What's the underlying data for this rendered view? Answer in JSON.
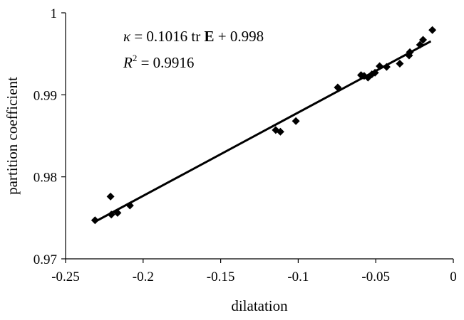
{
  "chart_data": {
    "type": "scatter",
    "xlabel": "dilatation",
    "ylabel": "partition coefficient",
    "xlim": [
      -0.25,
      0
    ],
    "ylim": [
      0.97,
      1
    ],
    "xticks": [
      -0.25,
      -0.2,
      -0.15,
      -0.1,
      -0.05,
      0
    ],
    "xtick_labels": [
      "-0.25",
      "-0.2",
      "-0.15",
      "-0.1",
      "-0.05",
      "0"
    ],
    "yticks": [
      0.97,
      0.98,
      0.99,
      1
    ],
    "ytick_labels": [
      "0.97",
      "0.98",
      "0.99",
      "1"
    ],
    "grid": false,
    "legend": "none",
    "marker": "diamond",
    "series": [
      {
        "points": [
          [
            -0.231,
            0.9747
          ],
          [
            -0.221,
            0.9776
          ],
          [
            -0.2205,
            0.9754
          ],
          [
            -0.2165,
            0.9756
          ],
          [
            -0.2085,
            0.9765
          ],
          [
            -0.1145,
            0.9857
          ],
          [
            -0.1115,
            0.9855
          ],
          [
            -0.1015,
            0.9868
          ],
          [
            -0.0745,
            0.9909
          ],
          [
            -0.0595,
            0.9924
          ],
          [
            -0.0575,
            0.9923
          ],
          [
            -0.055,
            0.9921
          ],
          [
            -0.0525,
            0.9925
          ],
          [
            -0.0505,
            0.9927
          ],
          [
            -0.0475,
            0.9935
          ],
          [
            -0.043,
            0.9934
          ],
          [
            -0.0345,
            0.9938
          ],
          [
            -0.0285,
            0.9948
          ],
          [
            -0.028,
            0.9952
          ],
          [
            -0.0215,
            0.9961
          ],
          [
            -0.0195,
            0.9967
          ],
          [
            -0.0135,
            0.9979
          ]
        ]
      }
    ],
    "trendline": {
      "slope": 0.1016,
      "intercept": 0.998,
      "x_range": [
        -0.231,
        -0.0145
      ]
    },
    "annotations": {
      "equation": {
        "kappa": "κ",
        "eq1": " = 0.1016 tr ",
        "E": "E",
        "eq2": " + 0.998"
      },
      "r2": {
        "R": "R",
        "sup": "2",
        "eq": " = 0.9916"
      }
    },
    "colors": {
      "marker": "#000000",
      "line": "#000000",
      "axis": "#000000"
    }
  }
}
